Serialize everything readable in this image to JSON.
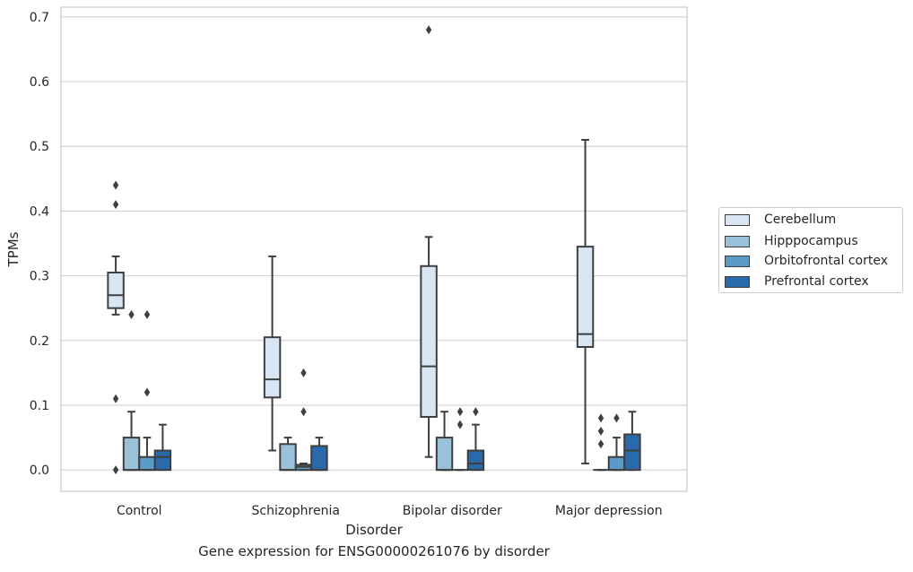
{
  "chart_data": {
    "type": "boxplot",
    "xlabel": "Disorder",
    "ylabel": "TPMs",
    "ylim": [
      -0.033,
      0.715
    ],
    "yticks": [
      "0.0",
      "0.1",
      "0.2",
      "0.3",
      "0.4",
      "0.5",
      "0.6",
      "0.7"
    ],
    "categories": [
      "Control",
      "Schizophrenia",
      "Bipolar disorder",
      "Major depression"
    ],
    "grid": "horizontal",
    "legend_position": "outside-right",
    "series": [
      {
        "name": "Cerebellum",
        "color": "#d8e6f4",
        "boxes": [
          {
            "whislo": 0.24,
            "q1": 0.25,
            "med": 0.27,
            "q3": 0.305,
            "whishi": 0.33,
            "fliers": [
              0.44,
              0.41,
              0.11,
              0.0
            ]
          },
          {
            "whislo": 0.03,
            "q1": 0.112,
            "med": 0.14,
            "q3": 0.205,
            "whishi": 0.33,
            "fliers": []
          },
          {
            "whislo": 0.02,
            "q1": 0.082,
            "med": 0.16,
            "q3": 0.315,
            "whishi": 0.36,
            "fliers": [
              0.68
            ]
          },
          {
            "whislo": 0.01,
            "q1": 0.19,
            "med": 0.21,
            "q3": 0.345,
            "whishi": 0.51,
            "fliers": []
          }
        ]
      },
      {
        "name": "Hipppocampus",
        "color": "#9ac1da",
        "boxes": [
          {
            "whislo": 0.0,
            "q1": 0.0,
            "med": 0.0,
            "q3": 0.05,
            "whishi": 0.09,
            "fliers": [
              0.24
            ]
          },
          {
            "whislo": 0.0,
            "q1": 0.0,
            "med": 0.0,
            "q3": 0.04,
            "whishi": 0.05,
            "fliers": []
          },
          {
            "whislo": 0.0,
            "q1": 0.0,
            "med": 0.0,
            "q3": 0.05,
            "whishi": 0.09,
            "fliers": []
          },
          {
            "whislo": 0.0,
            "q1": 0.0,
            "med": 0.0,
            "q3": 0.0,
            "whishi": 0.0,
            "fliers": [
              0.08,
              0.06,
              0.04
            ]
          }
        ]
      },
      {
        "name": "Orbitofrontal cortex",
        "color": "#5a9bc8",
        "boxes": [
          {
            "whislo": 0.0,
            "q1": 0.0,
            "med": 0.0,
            "q3": 0.02,
            "whishi": 0.05,
            "fliers": [
              0.24,
              0.12
            ]
          },
          {
            "whislo": 0.0,
            "q1": 0.0,
            "med": 0.005,
            "q3": 0.008,
            "whishi": 0.01,
            "fliers": [
              0.15,
              0.09
            ]
          },
          {
            "whislo": 0.0,
            "q1": 0.0,
            "med": 0.0,
            "q3": 0.0,
            "whishi": 0.0,
            "fliers": [
              0.09,
              0.07
            ]
          },
          {
            "whislo": 0.0,
            "q1": 0.0,
            "med": 0.0,
            "q3": 0.02,
            "whishi": 0.05,
            "fliers": [
              0.08
            ]
          }
        ]
      },
      {
        "name": "Prefrontal cortex",
        "color": "#2a6aab",
        "boxes": [
          {
            "whislo": 0.0,
            "q1": 0.0,
            "med": 0.02,
            "q3": 0.03,
            "whishi": 0.07,
            "fliers": []
          },
          {
            "whislo": 0.0,
            "q1": 0.0,
            "med": 0.0,
            "q3": 0.037,
            "whishi": 0.05,
            "fliers": []
          },
          {
            "whislo": 0.0,
            "q1": 0.0,
            "med": 0.01,
            "q3": 0.03,
            "whishi": 0.07,
            "fliers": [
              0.09
            ]
          },
          {
            "whislo": 0.0,
            "q1": 0.0,
            "med": 0.03,
            "q3": 0.055,
            "whishi": 0.09,
            "fliers": []
          }
        ]
      }
    ]
  },
  "caption": "Gene expression for ENSG00000261076 by disorder"
}
